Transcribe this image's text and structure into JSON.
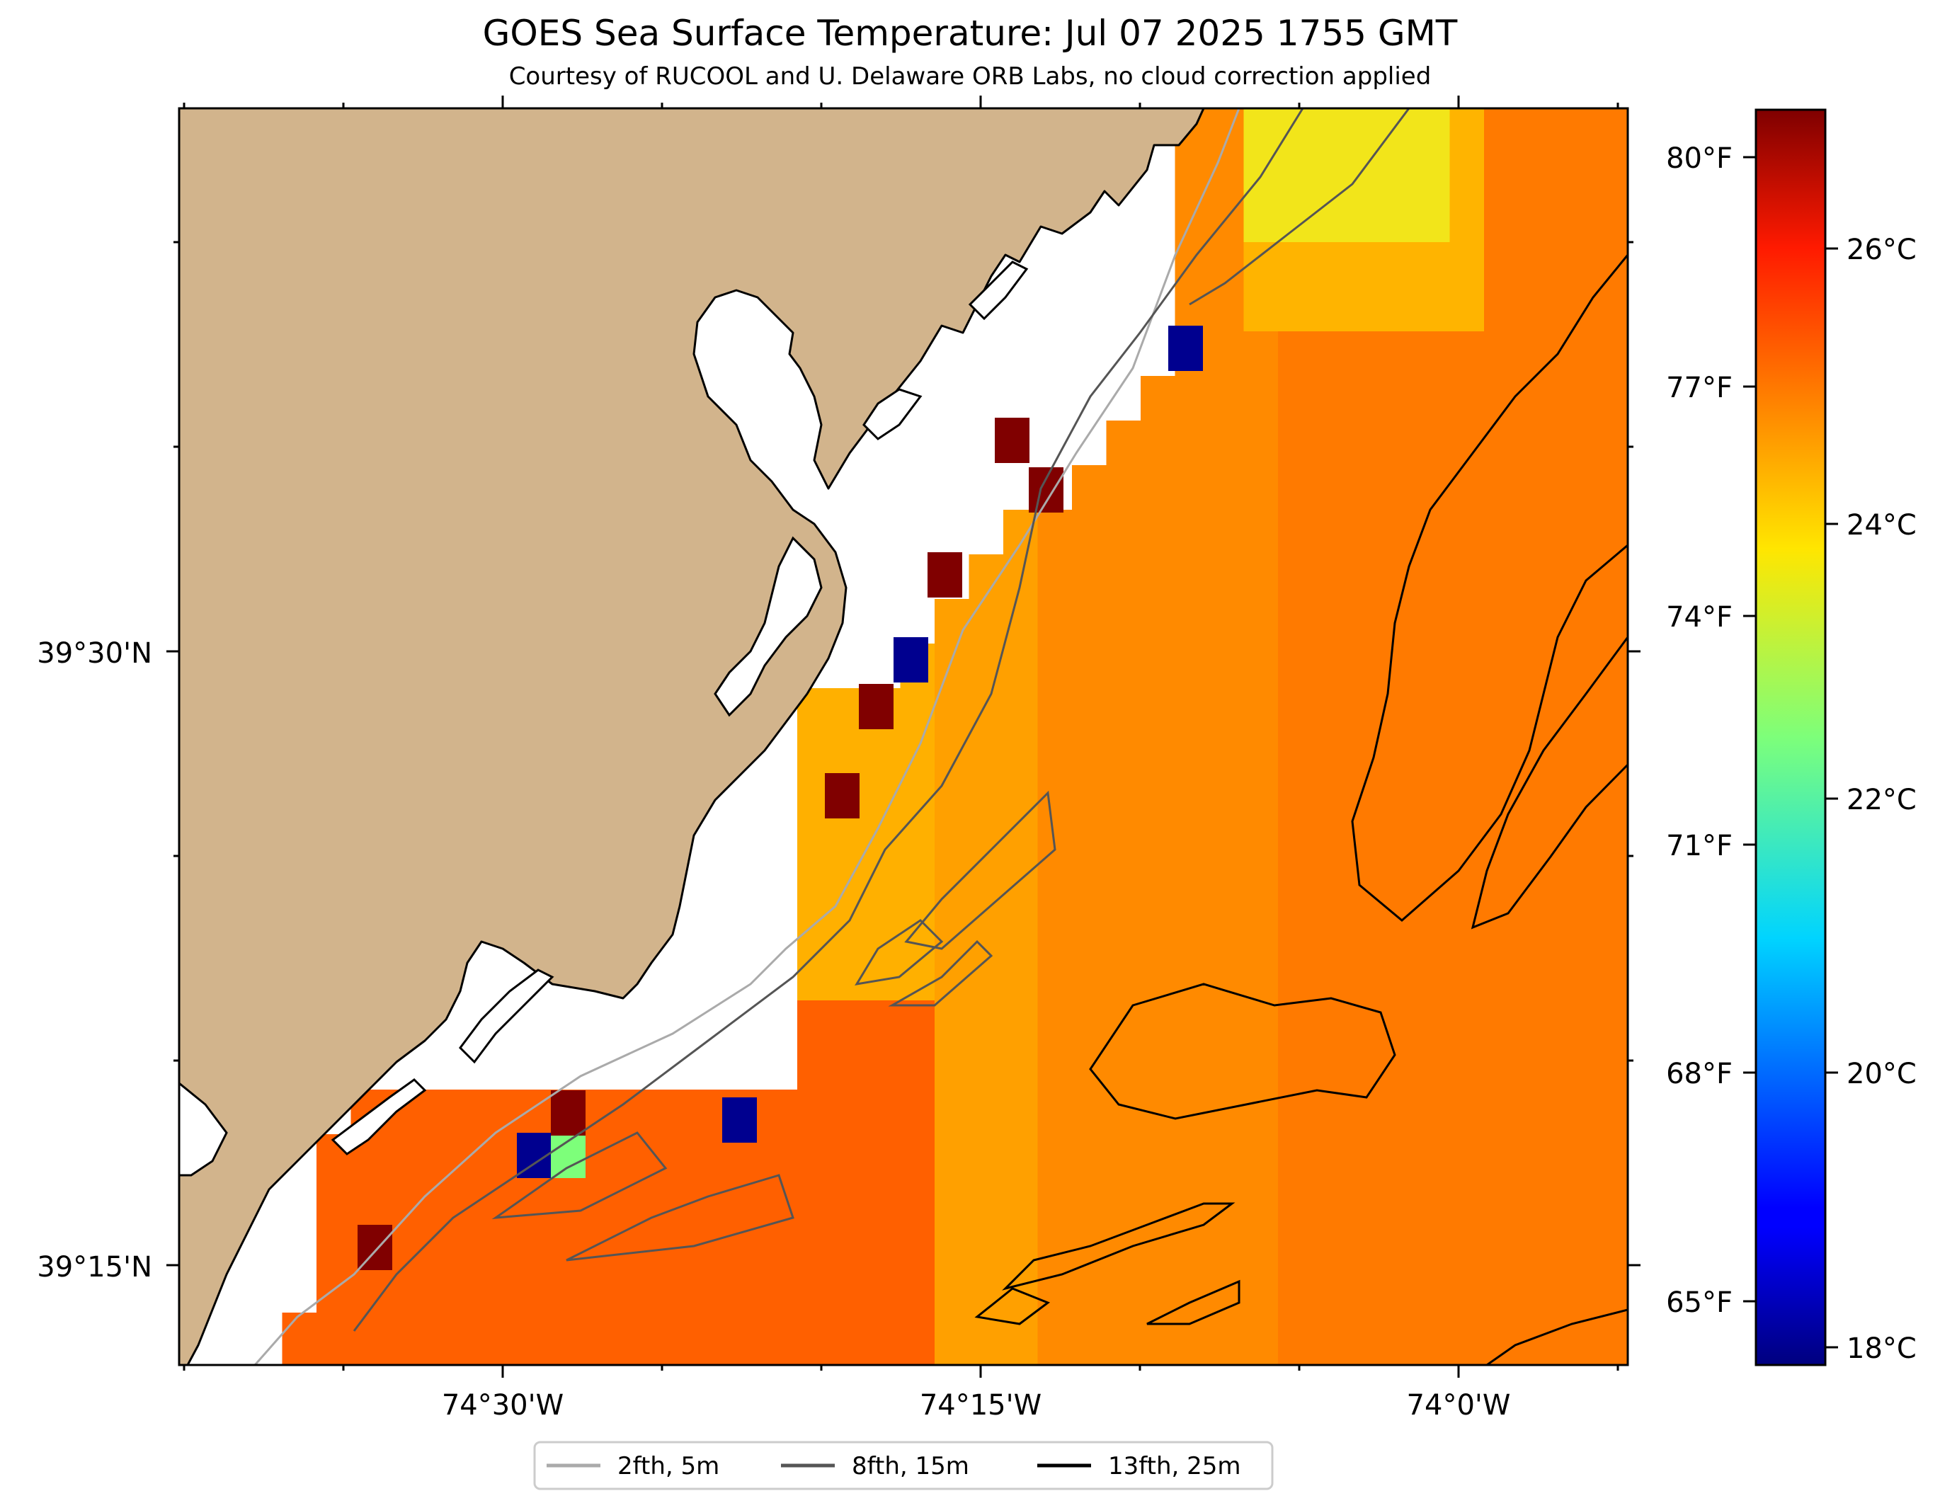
{
  "title": "GOES Sea Surface Temperature: Jul 07 2025 1755 GMT",
  "subtitle": "Courtesy of RUCOOL and U. Delaware ORB Labs, no cloud correction applied",
  "map": {
    "lat_labels": [
      "39°30'N",
      "39°15'N"
    ],
    "lon_labels": [
      "74°30'W",
      "74°15'W",
      "74°0'W"
    ]
  },
  "colorbar": {
    "colormap": "jet",
    "range_c": [
      17.8,
      27.6
    ],
    "celsius_labels": [
      "26°C",
      "24°C",
      "22°C",
      "20°C",
      "18°C"
    ],
    "fahrenheit_labels": [
      "80°F",
      "77°F",
      "74°F",
      "71°F",
      "68°F",
      "65°F"
    ]
  },
  "legend": {
    "items": [
      {
        "label": "2fth, 5m",
        "color": "#aaaaaa"
      },
      {
        "label": "8fth, 15m",
        "color": "#555555"
      },
      {
        "label": "13fth, 25m",
        "color": "#000000"
      }
    ]
  },
  "colors": {
    "land": "#d2b48c",
    "coast": "#000000",
    "no_data": "#ffffff"
  }
}
